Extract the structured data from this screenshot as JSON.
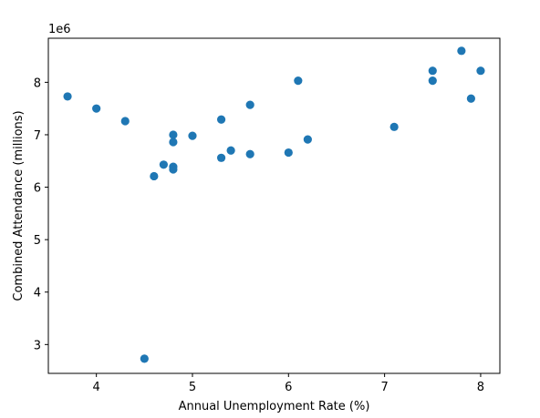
{
  "chart_data": {
    "type": "scatter",
    "title": "",
    "xlabel": "Annual Unemployment Rate (%)",
    "ylabel": "Combined Attendance (millions)",
    "y_offset_label": "1e6",
    "xlim": [
      3.5,
      8.2
    ],
    "ylim": [
      2450000,
      8840000
    ],
    "xticks": [
      4,
      5,
      6,
      7,
      8
    ],
    "yticks": [
      3000000,
      4000000,
      5000000,
      6000000,
      7000000,
      8000000
    ],
    "ytick_labels": [
      "3",
      "4",
      "5",
      "6",
      "7",
      "8"
    ],
    "grid": false,
    "marker_color": "#1f77b4",
    "points": [
      {
        "x": 3.7,
        "y": 7730000
      },
      {
        "x": 4.0,
        "y": 7500000
      },
      {
        "x": 4.3,
        "y": 7260000
      },
      {
        "x": 4.5,
        "y": 2730000
      },
      {
        "x": 4.6,
        "y": 6210000
      },
      {
        "x": 4.7,
        "y": 6430000
      },
      {
        "x": 4.8,
        "y": 7000000
      },
      {
        "x": 4.8,
        "y": 6860000
      },
      {
        "x": 4.8,
        "y": 6390000
      },
      {
        "x": 4.8,
        "y": 6340000
      },
      {
        "x": 5.0,
        "y": 6980000
      },
      {
        "x": 5.3,
        "y": 7290000
      },
      {
        "x": 5.3,
        "y": 6560000
      },
      {
        "x": 5.4,
        "y": 6700000
      },
      {
        "x": 5.6,
        "y": 7570000
      },
      {
        "x": 5.6,
        "y": 6630000
      },
      {
        "x": 6.0,
        "y": 6660000
      },
      {
        "x": 6.1,
        "y": 8030000
      },
      {
        "x": 6.2,
        "y": 6910000
      },
      {
        "x": 7.1,
        "y": 7150000
      },
      {
        "x": 7.5,
        "y": 8220000
      },
      {
        "x": 7.5,
        "y": 8030000
      },
      {
        "x": 7.8,
        "y": 8600000
      },
      {
        "x": 7.9,
        "y": 7690000
      },
      {
        "x": 8.0,
        "y": 8220000
      }
    ]
  }
}
